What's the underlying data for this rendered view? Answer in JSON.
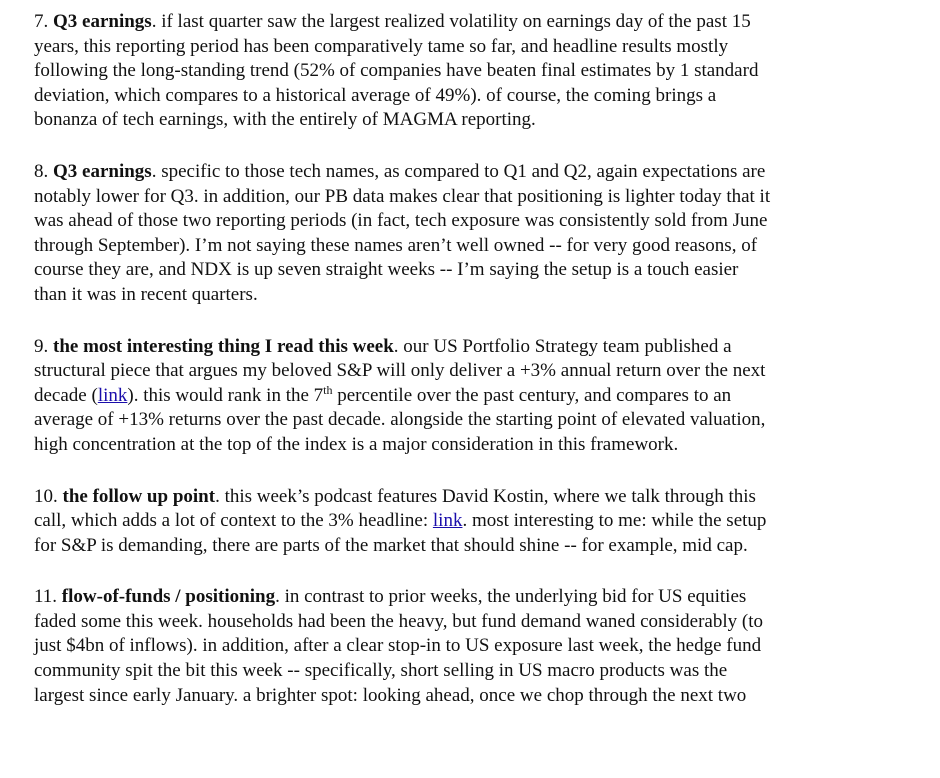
{
  "items": [
    {
      "number": "7.",
      "heading": "Q3 earnings",
      "lines": [
        "if last quarter saw the largest realized volatility on earnings day of the past 15",
        "years, this reporting period has been comparatively tame so far, and headline results mostly",
        "following the long-standing trend (52% of companies have beaten final estimates by 1 standard",
        "deviation, which compares to a historical average of 49%).  of course, the coming brings a",
        "bonanza of tech earnings, with the entirely of MAGMA reporting."
      ]
    },
    {
      "number": "8.",
      "heading": "Q3 earnings",
      "lines": [
        "specific to those tech names, as compared to Q1 and Q2, again expectations are",
        "notably lower for Q3.  in addition, our PB data makes clear that positioning is lighter today that it",
        "was ahead of those two reporting periods (in fact, tech exposure was consistently sold from June",
        "through September).  I’m not saying these names aren’t well owned -- for very good reasons, of",
        "course they are, and NDX is up seven straight weeks -- I’m saying the setup is a touch easier",
        "than it was in recent quarters."
      ]
    },
    {
      "number": "9.",
      "heading": "the most interesting thing I read this week",
      "line1": "our US Portfolio Strategy team published a",
      "line2": "structural piece that argues my beloved S&P will only deliver a +3% annual return over the next",
      "line3_pre": "decade (",
      "link_text": "link",
      "line3_mid": ").  this would rank in the 7",
      "sup": "th",
      "line3_post": " percentile over the past century, and compares to an",
      "line4": "average of +13% returns over the past decade.  alongside the starting point of elevated valuation,",
      "line5": "high concentration at the top of the index is a major consideration in this framework."
    },
    {
      "number": "10.",
      "heading": "the follow up point",
      "line1_pre": "this week’s podcast features David Kostin, where we talk through this",
      "line2_pre": "call, which adds a lot of context to the 3% headline: ",
      "link_text": "link",
      "line2_post": ".  most interesting to me: while the setup",
      "line3": "for S&P is demanding, there are parts of the market that should shine -- for example, mid cap."
    },
    {
      "number": "11.",
      "heading": "flow-of-funds / positioning",
      "lines": [
        "in contrast to prior weeks, the underlying bid for US equities",
        "faded some this week.  households had been the heavy, but fund demand waned considerably (to",
        "just $4bn of inflows).  in addition, after a clear stop-in to US exposure last week, the hedge fund",
        "community spit the bit this week -- specifically, short selling in US macro products was the",
        "largest since early January.  a brighter spot: looking ahead, once we chop through the next two"
      ]
    }
  ]
}
